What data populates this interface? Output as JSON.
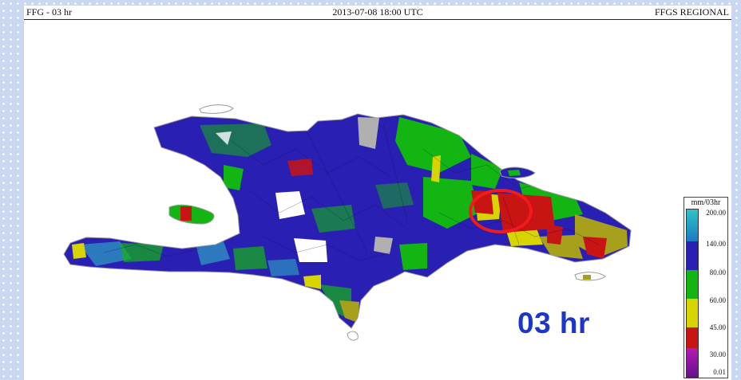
{
  "header": {
    "product": "FFG - 03 hr",
    "valid_time": "2013-07-08 18:00 UTC",
    "system": "FFGS REGIONAL"
  },
  "map": {
    "region": "Hispaniola",
    "highlight_color": "#f21a1a"
  },
  "legend": {
    "title": "mm/03hr",
    "classes": [
      {
        "label": "200.00",
        "color": "#2ec4c4"
      },
      {
        "label": "140.00",
        "color": "#2a1fb3"
      },
      {
        "label": "80.00",
        "color": "#12b512"
      },
      {
        "label": "60.00",
        "color": "#d8d400"
      },
      {
        "label": "45.00",
        "color": "#c91414"
      },
      {
        "label": "30.00",
        "color": "#b31ab3"
      },
      {
        "label": "0.01",
        "color": "#6a0f8f"
      }
    ]
  },
  "annotation": {
    "duration_label": "03 hr",
    "color": "#1c36c9"
  }
}
